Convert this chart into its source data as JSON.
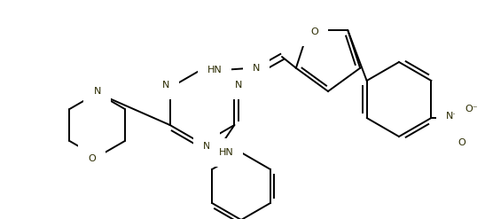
{
  "bg_color": "#ffffff",
  "line_color": "#000000",
  "line_width": 1.4,
  "figsize": [
    5.47,
    2.47
  ],
  "dpi": 100,
  "xlim": [
    0,
    547
  ],
  "ylim": [
    0,
    247
  ]
}
